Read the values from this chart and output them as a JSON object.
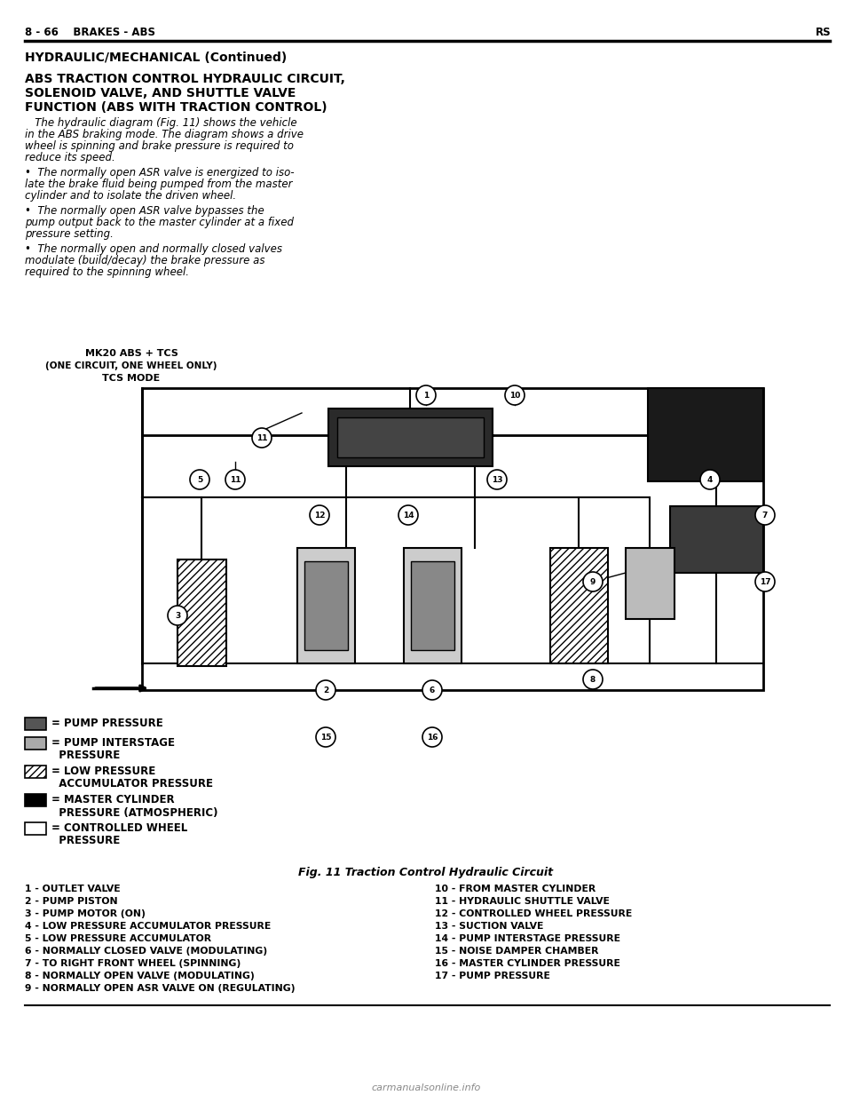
{
  "bg_color": "#ffffff",
  "header_text": "8 - 66    BRAKES - ABS",
  "header_right": "RS",
  "section_title": "HYDRAULIC/MECHANICAL (Continued)",
  "subtitle1": "ABS TRACTION CONTROL HYDRAULIC CIRCUIT,",
  "subtitle2": "SOLENOID VALVE, AND SHUTTLE VALVE",
  "subtitle3": "FUNCTION (ABS WITH TRACTION CONTROL)",
  "para1_lines": [
    "   The hydraulic diagram (Fig. 11) shows the vehicle",
    "in the ABS braking mode. The diagram shows a drive",
    "wheel is spinning and brake pressure is required to",
    "reduce its speed."
  ],
  "bullet1_lines": [
    "•  The normally open ASR valve is energized to iso-",
    "late the brake fluid being pumped from the master",
    "cylinder and to isolate the driven wheel."
  ],
  "bullet2_lines": [
    "•  The normally open ASR valve bypasses the",
    "pump output back to the master cylinder at a fixed",
    "pressure setting."
  ],
  "bullet3_lines": [
    "•  The normally open and normally closed valves",
    "modulate (build/decay) the brake pressure as",
    "required to the spinning wheel."
  ],
  "diagram_label1": "MK20 ABS + TCS",
  "diagram_label2": "(ONE CIRCUIT, ONE WHEEL ONLY)",
  "diagram_label3": "TCS MODE",
  "legend_items": [
    {
      "color": "#555555",
      "hatch": "",
      "label1": "= PUMP PRESSURE",
      "label2": ""
    },
    {
      "color": "#aaaaaa",
      "hatch": "",
      "label1": "= PUMP INTERSTAGE",
      "label2": "  PRESSURE"
    },
    {
      "color": "#ffffff",
      "hatch": "////",
      "label1": "= LOW PRESSURE",
      "label2": "  ACCUMULATOR PRESSURE"
    },
    {
      "color": "#000000",
      "hatch": "",
      "label1": "= MASTER CYLINDER",
      "label2": "  PRESSURE (ATMOSPHERIC)"
    },
    {
      "color": "#ffffff",
      "hatch": "",
      "label1": "= CONTROLLED WHEEL",
      "label2": "  PRESSURE"
    }
  ],
  "fig_caption": "Fig. 11 Traction Control Hydraulic Circuit",
  "parts_left": [
    "1 - OUTLET VALVE",
    "2 - PUMP PISTON",
    "3 - PUMP MOTOR (ON)",
    "4 - LOW PRESSURE ACCUMULATOR PRESSURE",
    "5 - LOW PRESSURE ACCUMULATOR",
    "6 - NORMALLY CLOSED VALVE (MODULATING)",
    "7 - TO RIGHT FRONT WHEEL (SPINNING)",
    "8 - NORMALLY OPEN VALVE (MODULATING)",
    "9 - NORMALLY OPEN ASR VALVE ON (REGULATING)"
  ],
  "parts_right": [
    "10 - FROM MASTER CYLINDER",
    "11 - HYDRAULIC SHUTTLE VALVE",
    "12 - CONTROLLED WHEEL PRESSURE",
    "13 - SUCTION VALVE",
    "14 - PUMP INTERSTAGE PRESSURE",
    "15 - NOISE DAMPER CHAMBER",
    "16 - MASTER CYLINDER PRESSURE",
    "17 - PUMP PRESSURE"
  ],
  "watermark": "carmanualsonline.info"
}
